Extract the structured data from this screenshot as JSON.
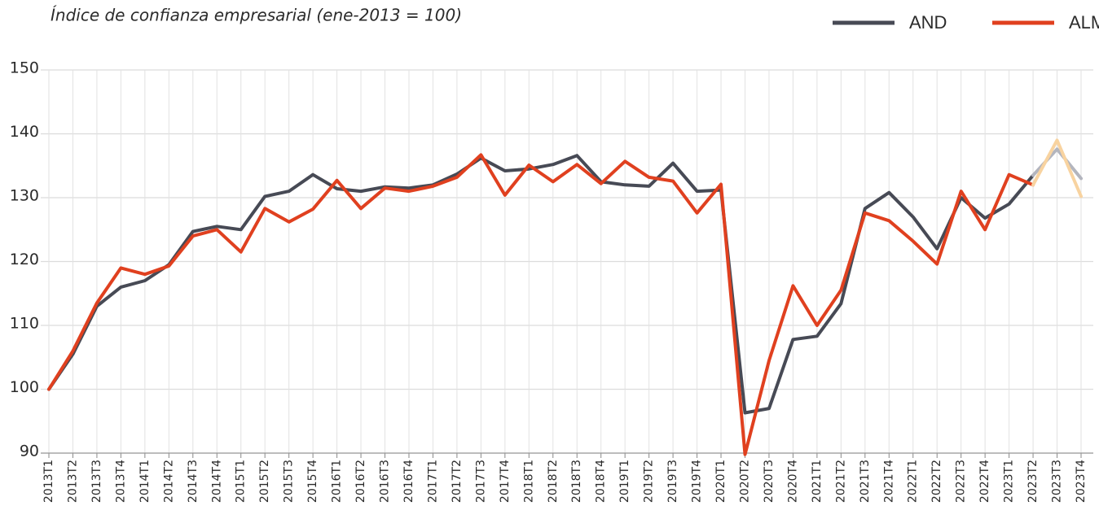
{
  "chart_data": {
    "type": "line",
    "title": "Índice de confianza empresarial (ene-2013 = 100)",
    "categories": [
      "2013T1",
      "2013T2",
      "2013T3",
      "2013T4",
      "2014T1",
      "2014T2",
      "2014T3",
      "2014T4",
      "2015T1",
      "2015T2",
      "2015T3",
      "2015T4",
      "2016T1",
      "2016T2",
      "2016T3",
      "2016T4",
      "2017T1",
      "2017T2",
      "2017T3",
      "2017T4",
      "2018T1",
      "2018T2",
      "2018T3",
      "2018T4",
      "2019T1",
      "2019T2",
      "2019T3",
      "2019T4",
      "2020T1",
      "2020T2",
      "2020T3",
      "2020T4",
      "2021T1",
      "2021T2",
      "2021T3",
      "2021T4",
      "2022T1",
      "2022T2",
      "2022T3",
      "2022T4",
      "2023T1",
      "2023T2",
      "2023T3",
      "2023T4"
    ],
    "series": [
      {
        "name": "AND",
        "color": "#474a55",
        "projection_color": "#b3b5be",
        "values": [
          100,
          105.5,
          113,
          116,
          117,
          119.5,
          124.7,
          125.5,
          125,
          130.2,
          131,
          133.6,
          131.4,
          131,
          131.7,
          131.5,
          132,
          133.7,
          136.2,
          134.2,
          134.5,
          135.2,
          136.6,
          132.5,
          132,
          131.8,
          135.4,
          131,
          131.2,
          96.3,
          97,
          107.8,
          108.3,
          113.4,
          128.3,
          130.8,
          127,
          122,
          130,
          126.8,
          129,
          133.5,
          137.6,
          133
        ]
      },
      {
        "name": "ALM",
        "color": "#e0401f",
        "projection_color": "#f8d3a0",
        "values": [
          100,
          106,
          113.5,
          119,
          118,
          119.3,
          124,
          125,
          121.5,
          128.3,
          126.2,
          128.2,
          132.7,
          128.3,
          131.5,
          131,
          131.8,
          133.2,
          136.7,
          130.4,
          135.1,
          132.5,
          135.2,
          132.2,
          135.7,
          133.2,
          132.6,
          127.6,
          132.1,
          89.8,
          104.5,
          116.2,
          110,
          115.5,
          127.6,
          126.4,
          123.2,
          119.6,
          131,
          125,
          133.6,
          132,
          139,
          130.2
        ]
      }
    ],
    "projection_from": "2023T2",
    "ylim": [
      90,
      150
    ],
    "yticks": [
      90,
      100,
      110,
      120,
      130,
      140,
      150
    ],
    "grid": true,
    "legend": "top-right"
  }
}
